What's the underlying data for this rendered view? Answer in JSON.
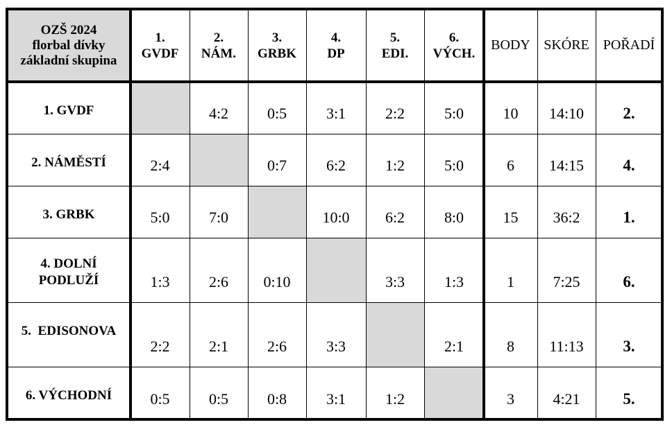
{
  "table": {
    "title_lines": [
      "OZŠ 2024",
      "florbal dívky",
      "základní skupina"
    ],
    "column_headers": [
      [
        "1.",
        "GVDF"
      ],
      [
        "2.",
        "NÁM."
      ],
      [
        "3.",
        "GRBK"
      ],
      [
        "4.",
        "DP"
      ],
      [
        "5.",
        "EDI."
      ],
      [
        "6.",
        "VÝCH."
      ]
    ],
    "stat_headers": [
      "BODY",
      "SKÓRE",
      "POŘADÍ"
    ],
    "rows": [
      {
        "team": [
          "1. GVDF"
        ],
        "results": [
          "",
          "4:2",
          "0:5",
          "3:1",
          "2:2",
          "5:0"
        ],
        "body": "10",
        "skore": "14:10",
        "poradi": "2."
      },
      {
        "team": [
          "2. NÁMĚSTÍ"
        ],
        "results": [
          "2:4",
          "",
          "0:7",
          "6:2",
          "1:2",
          "5:0"
        ],
        "body": "6",
        "skore": "14:15",
        "poradi": "4."
      },
      {
        "team": [
          "3. GRBK"
        ],
        "results": [
          "5:0",
          "7:0",
          "",
          "10:0",
          "6:2",
          "8:0"
        ],
        "body": "15",
        "skore": "36:2",
        "poradi": "1."
      },
      {
        "team": [
          "4. DOLNÍ",
          "PODLUŽÍ"
        ],
        "results": [
          "1:3",
          "2:6",
          "0:10",
          "",
          "3:3",
          "1:3"
        ],
        "body": "1",
        "skore": "7:25",
        "poradi": "6."
      },
      {
        "team": [
          "5.  EDISONOVA"
        ],
        "results": [
          "2:2",
          "2:1",
          "2:6",
          "3:3",
          "",
          "2:1"
        ],
        "body": "8",
        "skore": "11:13",
        "poradi": "3."
      },
      {
        "team": [
          "6. VÝCHODNÍ"
        ],
        "results": [
          "0:5",
          "0:5",
          "0:8",
          "3:1",
          "1:2",
          ""
        ],
        "body": "3",
        "skore": "4:21",
        "poradi": "5."
      }
    ]
  },
  "colors": {
    "shade": "#d9d9d9",
    "border": "#000000",
    "background": "#ffffff"
  }
}
